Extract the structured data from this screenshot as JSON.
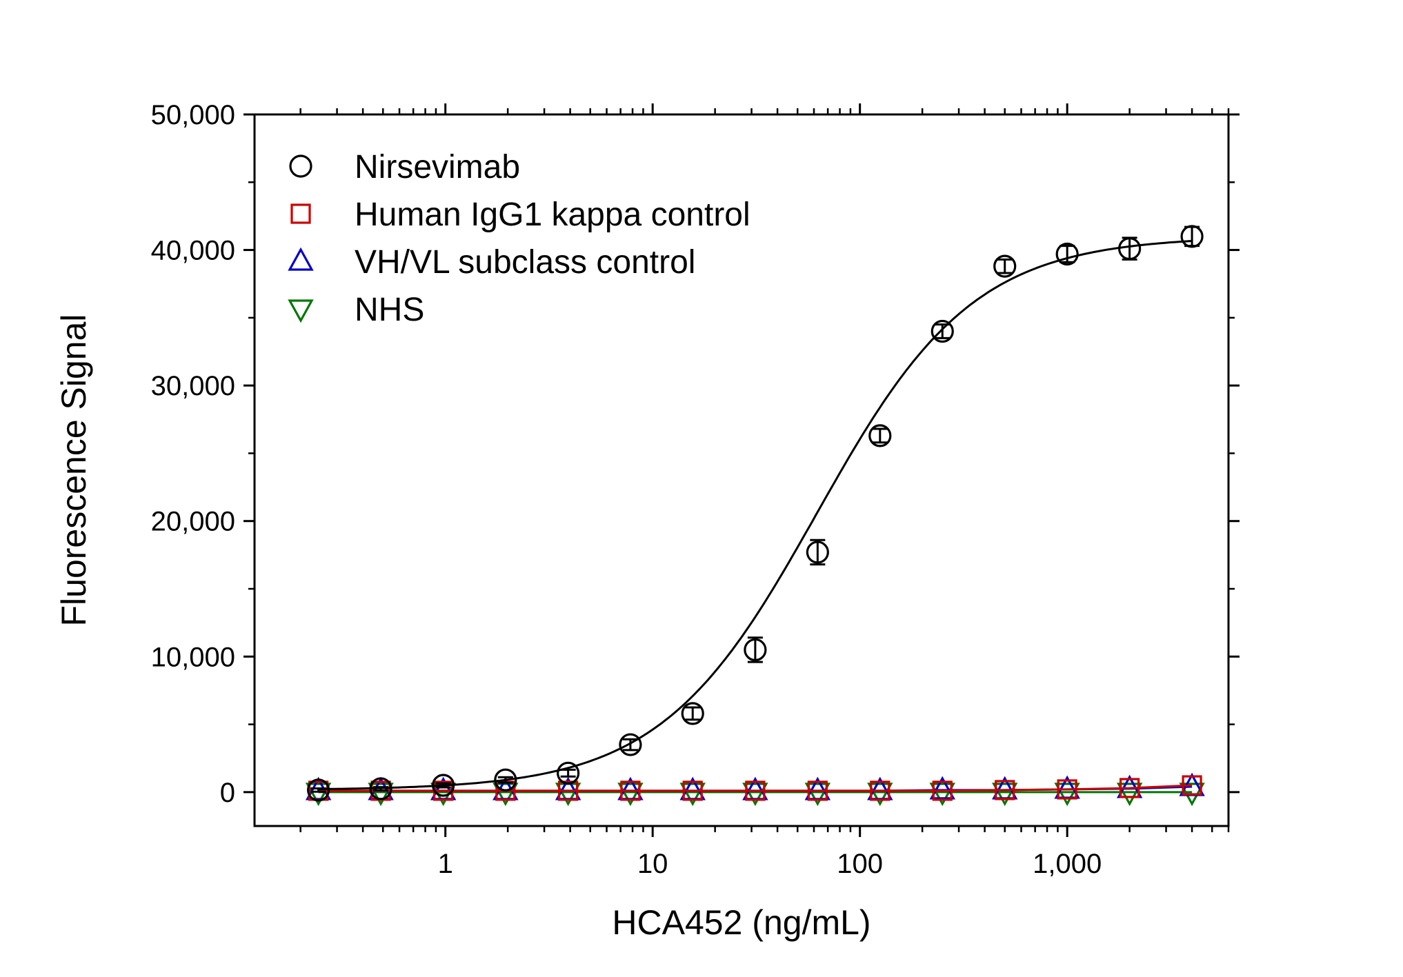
{
  "chart_data": {
    "type": "scatter",
    "xlabel": "HCA452 (ng/mL)",
    "ylabel": "Fluorescence Signal",
    "xscale": "log",
    "xlim": [
      0.12,
      6000
    ],
    "ylim": [
      -2500,
      50000
    ],
    "x_ticks": [
      {
        "value": 1,
        "label": "1"
      },
      {
        "value": 10,
        "label": "10"
      },
      {
        "value": 100,
        "label": "100"
      },
      {
        "value": 1000,
        "label": "1,000"
      }
    ],
    "y_ticks": [
      {
        "value": 0,
        "label": "0"
      },
      {
        "value": 10000,
        "label": "10,000"
      },
      {
        "value": 20000,
        "label": "20,000"
      },
      {
        "value": 30000,
        "label": "30,000"
      },
      {
        "value": 40000,
        "label": "40,000"
      },
      {
        "value": 50000,
        "label": "50,000"
      }
    ],
    "legend_position": "top-left",
    "grid": false,
    "series": [
      {
        "name": "Nirsevimab",
        "marker": "circle",
        "color": "#000000",
        "fit": "4PL",
        "x": [
          0.244,
          0.488,
          0.977,
          1.95,
          3.91,
          7.81,
          15.6,
          31.25,
          62.5,
          125,
          250,
          500,
          1000,
          2000,
          4000
        ],
        "y": [
          150,
          250,
          500,
          900,
          1400,
          3500,
          5800,
          10500,
          17700,
          26300,
          34000,
          38800,
          39700,
          40100,
          41000
        ],
        "err": [
          120,
          120,
          150,
          200,
          250,
          400,
          450,
          900,
          900,
          500,
          500,
          500,
          600,
          800,
          700
        ],
        "fit_params": {
          "bottom": 150,
          "top": 41000,
          "ec50": 62,
          "hill": 1.15
        }
      },
      {
        "name": "Human IgG1 kappa control",
        "marker": "square",
        "color": "#cc0000",
        "x": [
          0.244,
          0.488,
          0.977,
          1.95,
          3.91,
          7.81,
          15.6,
          31.25,
          62.5,
          125,
          250,
          500,
          1000,
          2000,
          4000
        ],
        "y": [
          100,
          100,
          100,
          100,
          100,
          100,
          100,
          100,
          100,
          100,
          100,
          150,
          200,
          300,
          500
        ]
      },
      {
        "name": "VH/VL subclass control",
        "marker": "triangle-up",
        "color": "#0000cc",
        "x": [
          0.244,
          0.488,
          0.977,
          1.95,
          3.91,
          7.81,
          15.6,
          31.25,
          62.5,
          125,
          250,
          500,
          1000,
          2000,
          4000
        ],
        "y": [
          100,
          100,
          100,
          100,
          100,
          100,
          100,
          100,
          100,
          100,
          150,
          150,
          200,
          250,
          400
        ]
      },
      {
        "name": "NHS",
        "marker": "triangle-down",
        "color": "#007700",
        "x": [
          0.244,
          0.488,
          0.977,
          1.95,
          3.91,
          7.81,
          15.6,
          31.25,
          62.5,
          125,
          250,
          500,
          1000,
          2000,
          4000
        ],
        "y": [
          0,
          0,
          0,
          0,
          0,
          0,
          0,
          0,
          0,
          0,
          0,
          0,
          0,
          0,
          0
        ]
      }
    ]
  }
}
